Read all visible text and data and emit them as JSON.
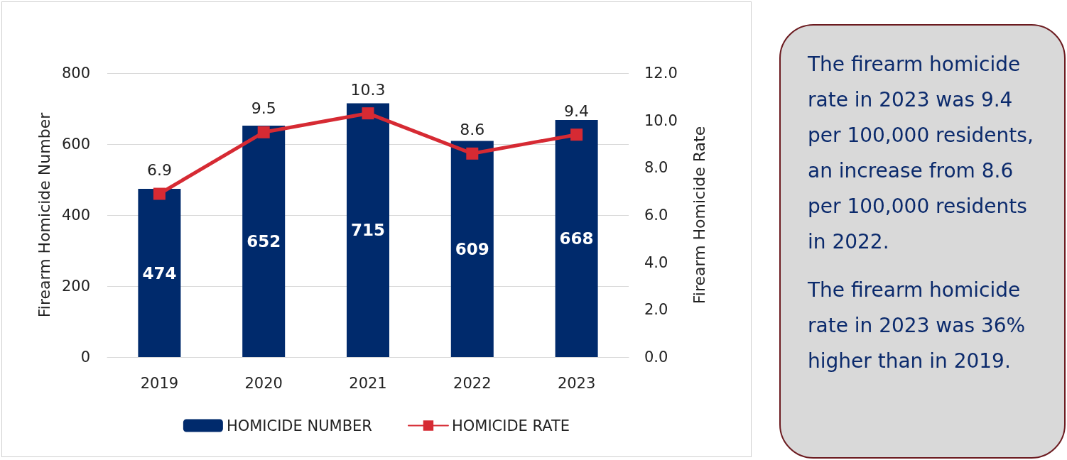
{
  "chart_data": [
    {
      "type": "bar",
      "categories": [
        "2019",
        "2020",
        "2021",
        "2022",
        "2023"
      ],
      "series": [
        {
          "name": "HOMICIDE NUMBER",
          "color": "#002a6c",
          "values": [
            474,
            652,
            715,
            609,
            668
          ]
        },
        {
          "name": "HOMICIDE RATE",
          "type": "line",
          "axis": "y2",
          "color": "#d62a33",
          "values": [
            6.9,
            9.5,
            10.3,
            8.6,
            9.4
          ]
        }
      ],
      "ylabel": "Firearm Homicide Number",
      "y2label": "Firearm Homicide Rate",
      "ylim": [
        0,
        800
      ],
      "yticks": [
        0,
        200,
        400,
        600,
        800
      ],
      "y2lim": [
        0,
        12
      ],
      "y2ticks": [
        {
          "value": 0,
          "label": "0.0"
        },
        {
          "value": 2,
          "label": "2.0"
        },
        {
          "value": 4,
          "label": "4.0"
        },
        {
          "value": 6,
          "label": "6.0"
        },
        {
          "value": 8,
          "label": "8.0"
        },
        {
          "value": 10,
          "label": "10.0"
        },
        {
          "value": 12,
          "label": "12.0"
        }
      ],
      "grid": "y",
      "legend": "bottom",
      "marker": "square",
      "data_labels": true
    },
    {
      "type": "other",
      "annotations": [
        "The firearm homicide rate in 2023 was 9.4 per 100,000 residents, an increase from 8.6 per 100,000 residents in 2022.",
        "The firearm homicide rate in 2023 was 36% higher than in 2019."
      ]
    }
  ]
}
